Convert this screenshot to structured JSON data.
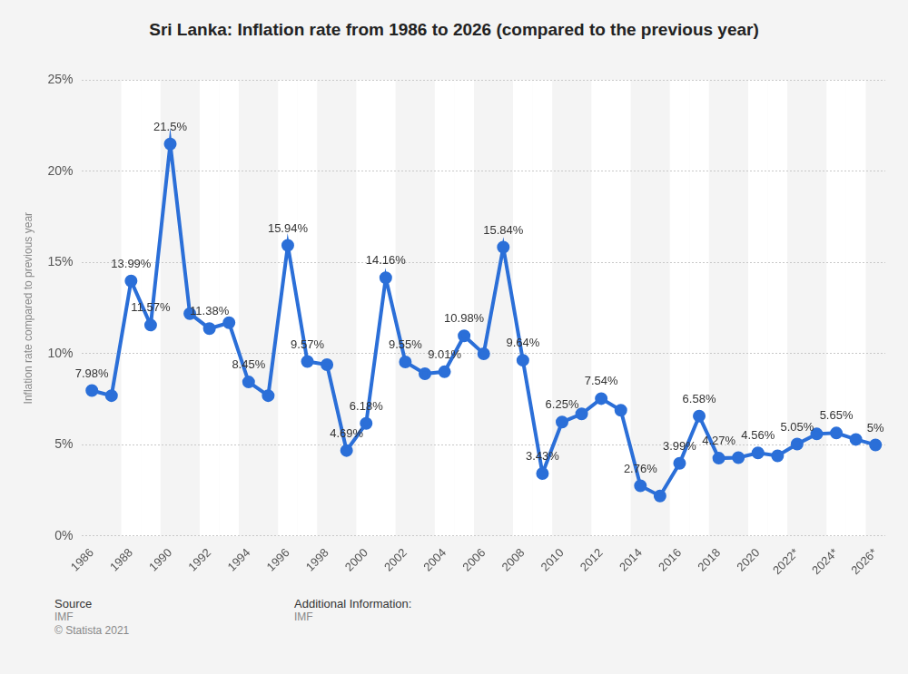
{
  "chart_data": {
    "type": "line",
    "title": "Sri Lanka: Inflation rate from 1986 to 2026 (compared to the previous year)",
    "y_label": "Inflation rate compared to previous year",
    "categories": [
      "1986",
      null,
      "1988",
      null,
      "1990",
      null,
      "1992",
      null,
      "1994",
      null,
      "1996",
      null,
      "1998",
      null,
      "2000",
      null,
      "2002",
      null,
      "2004",
      null,
      "2006",
      null,
      "2008",
      null,
      "2010",
      null,
      "2012",
      null,
      "2014",
      null,
      "2016",
      null,
      "2018",
      null,
      "2020",
      null,
      "2022*",
      null,
      "2024*",
      null,
      "2026*"
    ],
    "values": [
      7.98,
      7.7,
      13.99,
      11.57,
      21.5,
      12.2,
      11.38,
      11.7,
      8.45,
      7.7,
      15.94,
      9.57,
      9.4,
      4.69,
      6.18,
      14.16,
      9.55,
      8.9,
      9.01,
      10.98,
      10.0,
      15.84,
      9.64,
      3.43,
      6.25,
      6.7,
      7.54,
      6.9,
      2.76,
      2.2,
      3.99,
      6.58,
      4.27,
      4.3,
      4.56,
      4.4,
      5.05,
      5.6,
      5.65,
      5.3,
      5
    ],
    "value_labels": [
      "7.98%",
      null,
      "13.99%",
      "11.57%",
      "21.5%",
      null,
      "11.38%",
      null,
      "8.45%",
      null,
      "15.94%",
      "9.57%",
      null,
      "4.69%",
      "6.18%",
      "14.16%",
      "9.55%",
      null,
      "9.01%",
      "10.98%",
      null,
      "15.84%",
      "9.64%",
      "3.43%",
      "6.25%",
      null,
      "7.54%",
      null,
      "2.76%",
      null,
      "3.99%",
      "6.58%",
      "4.27%",
      null,
      "4.56%",
      null,
      "5.05%",
      null,
      "5.65%",
      null,
      "5%"
    ],
    "color": "#2b6fd8",
    "marker": "circle",
    "line_style": "solid",
    "data_labels": true,
    "ylim": [
      0,
      25
    ],
    "yticks": [
      {
        "value": 0,
        "label": "0%"
      },
      {
        "value": 5,
        "label": "5%"
      },
      {
        "value": 10,
        "label": "10%"
      },
      {
        "value": 15,
        "label": "15%"
      },
      {
        "value": 20,
        "label": "20%"
      },
      {
        "value": 25,
        "label": "25%"
      }
    ],
    "grid": true,
    "source_label": "Source",
    "source": "IMF",
    "copyright": "© Statista 2021",
    "additional_info_label": "Additional Information:",
    "additional_info": "IMF"
  }
}
